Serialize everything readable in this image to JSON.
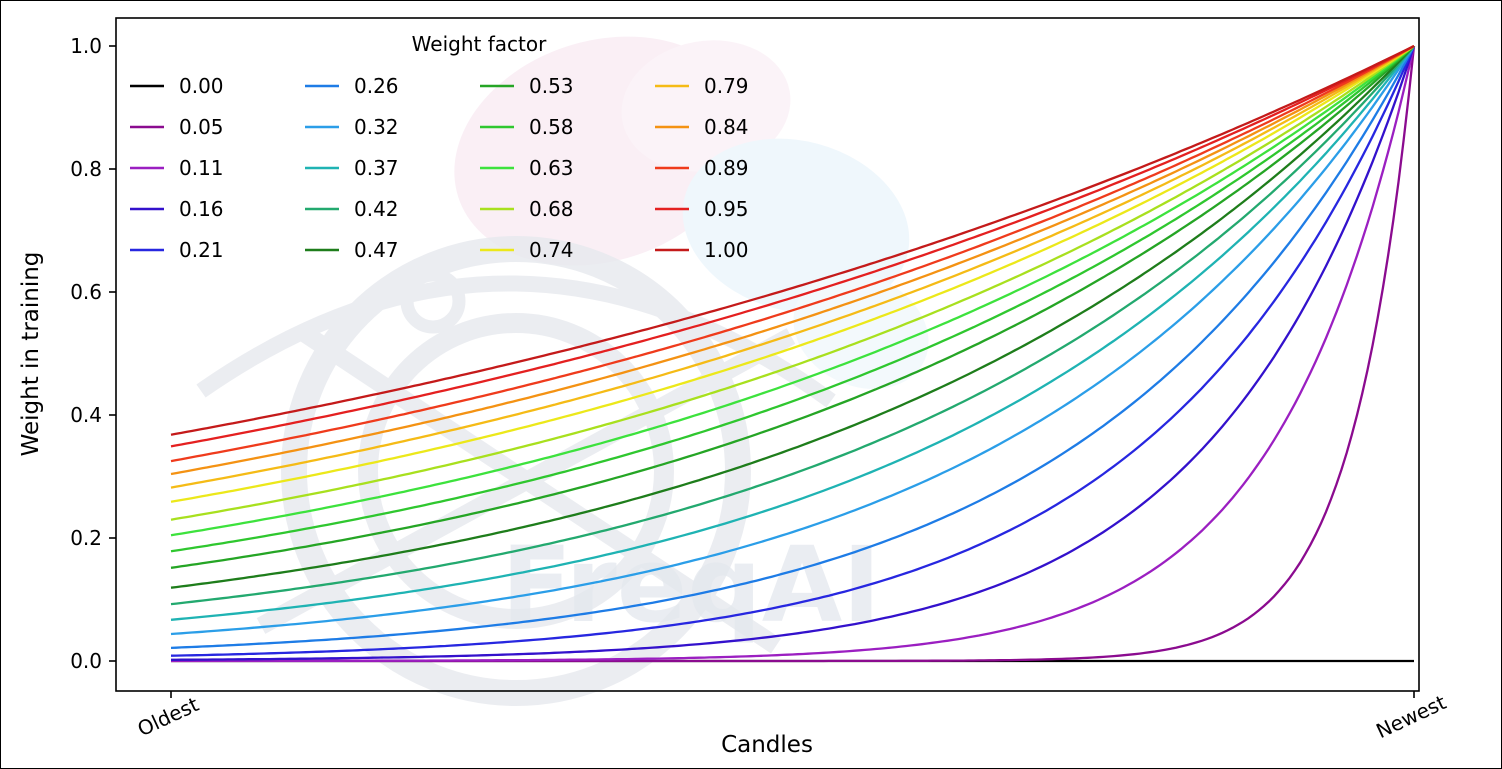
{
  "watermark": {
    "text": "FreqAI"
  },
  "chart_data": {
    "type": "line",
    "title": "",
    "xlabel": "Candles",
    "ylabel": "Weight in training",
    "legend_title": "Weight factor",
    "legend_position": "upper left",
    "legend_columns": 4,
    "grid": false,
    "x_ticks": [
      "Oldest",
      "Newest"
    ],
    "y_ticks": [
      "0.0",
      "0.2",
      "0.4",
      "0.6",
      "0.8",
      "1.0"
    ],
    "ylim": [
      0.0,
      1.0
    ],
    "curve_formula": "weight(x) = exp(-(1 - x) / factor), x in [0,1] from Oldest to Newest; factor 0.00 plots as constant 0; all curves reach 1.0 at Newest",
    "series": [
      {
        "label": "0.00",
        "factor": 0.0,
        "color": "#000000"
      },
      {
        "label": "0.05",
        "factor": 0.05,
        "color": "#8b0b8f"
      },
      {
        "label": "0.11",
        "factor": 0.11,
        "color": "#9b1fc1"
      },
      {
        "label": "0.16",
        "factor": 0.16,
        "color": "#3311cc"
      },
      {
        "label": "0.21",
        "factor": 0.21,
        "color": "#2727e0"
      },
      {
        "label": "0.26",
        "factor": 0.26,
        "color": "#1e7ce6"
      },
      {
        "label": "0.32",
        "factor": 0.32,
        "color": "#2b9ee8"
      },
      {
        "label": "0.37",
        "factor": 0.37,
        "color": "#1fb3b3"
      },
      {
        "label": "0.42",
        "factor": 0.42,
        "color": "#23a96f"
      },
      {
        "label": "0.47",
        "factor": 0.47,
        "color": "#1e7d1b"
      },
      {
        "label": "0.53",
        "factor": 0.53,
        "color": "#25a525"
      },
      {
        "label": "0.58",
        "factor": 0.58,
        "color": "#2fc72f"
      },
      {
        "label": "0.63",
        "factor": 0.63,
        "color": "#3de23d"
      },
      {
        "label": "0.68",
        "factor": 0.68,
        "color": "#a8e01e"
      },
      {
        "label": "0.74",
        "factor": 0.74,
        "color": "#ece81a"
      },
      {
        "label": "0.79",
        "factor": 0.79,
        "color": "#f5bb16"
      },
      {
        "label": "0.84",
        "factor": 0.84,
        "color": "#f49213"
      },
      {
        "label": "0.89",
        "factor": 0.89,
        "color": "#ef3b1c"
      },
      {
        "label": "0.95",
        "factor": 0.95,
        "color": "#e42020"
      },
      {
        "label": "1.00",
        "factor": 1.0,
        "color": "#c41a1a"
      }
    ]
  }
}
